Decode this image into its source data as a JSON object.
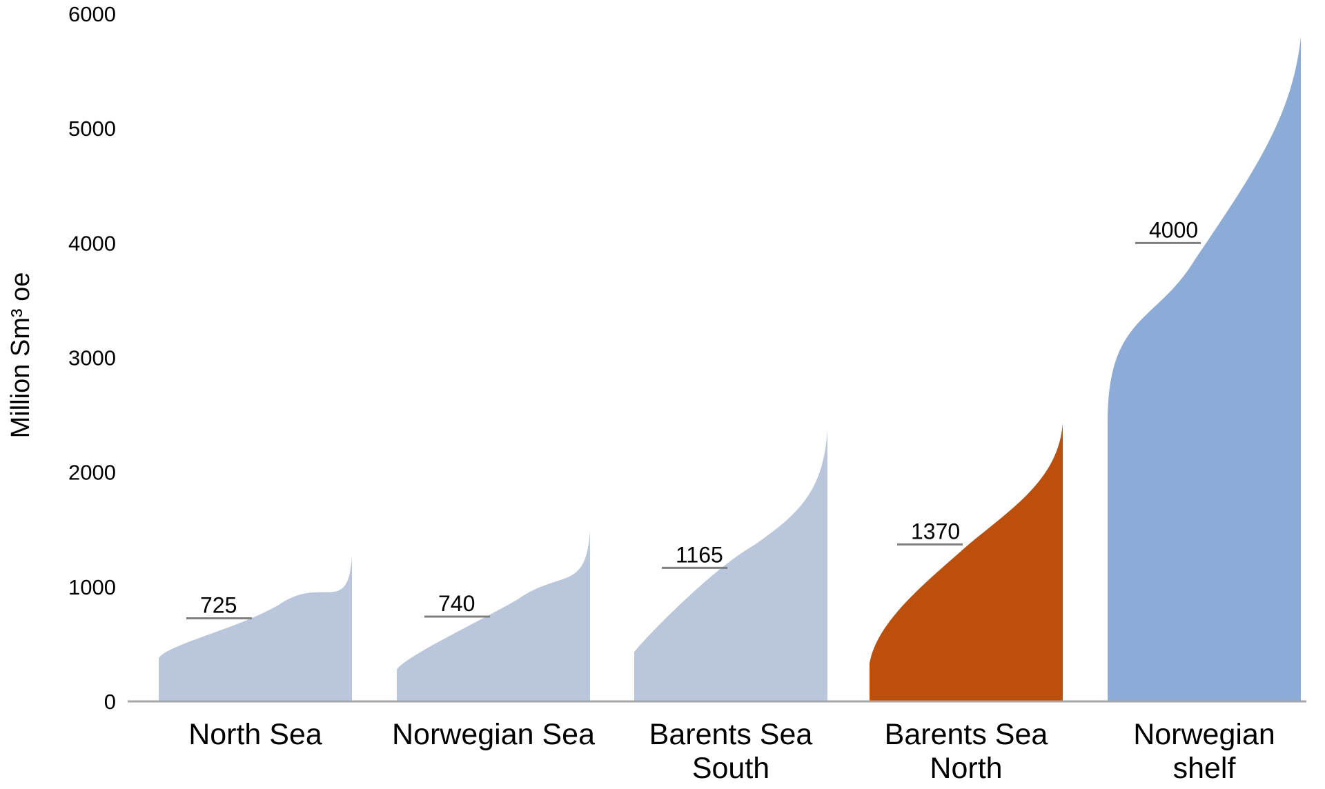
{
  "chart_data": {
    "type": "area",
    "title": "",
    "xlabel": "",
    "ylabel": "Million Sm³ oe",
    "ylim": [
      0,
      6000
    ],
    "yticks": [
      "0",
      "1000",
      "2000",
      "3000",
      "4000",
      "5000",
      "6000"
    ],
    "grid": false,
    "legend": "none",
    "categories": [
      {
        "lines": [
          "North Sea"
        ],
        "mean": 725,
        "mean_label": "725",
        "low": 380,
        "high": 1270,
        "color": "#b9c6dc"
      },
      {
        "lines": [
          "Norwegian Sea"
        ],
        "mean": 740,
        "mean_label": "740",
        "low": 280,
        "high": 1490,
        "color": "#b9c6dc"
      },
      {
        "lines": [
          "Barents Sea",
          "South"
        ],
        "mean": 1165,
        "mean_label": "1165",
        "low": 430,
        "high": 2370,
        "color": "#b9c6dc"
      },
      {
        "lines": [
          "Barents Sea",
          "North"
        ],
        "mean": 1370,
        "mean_label": "1370",
        "low": 330,
        "high": 2430,
        "color": "#bb4f0b"
      },
      {
        "lines": [
          "Norwegian",
          "shelf"
        ],
        "mean": 4000,
        "mean_label": "4000",
        "low": 2470,
        "high": 5800,
        "color": "#8cabd6"
      }
    ]
  }
}
